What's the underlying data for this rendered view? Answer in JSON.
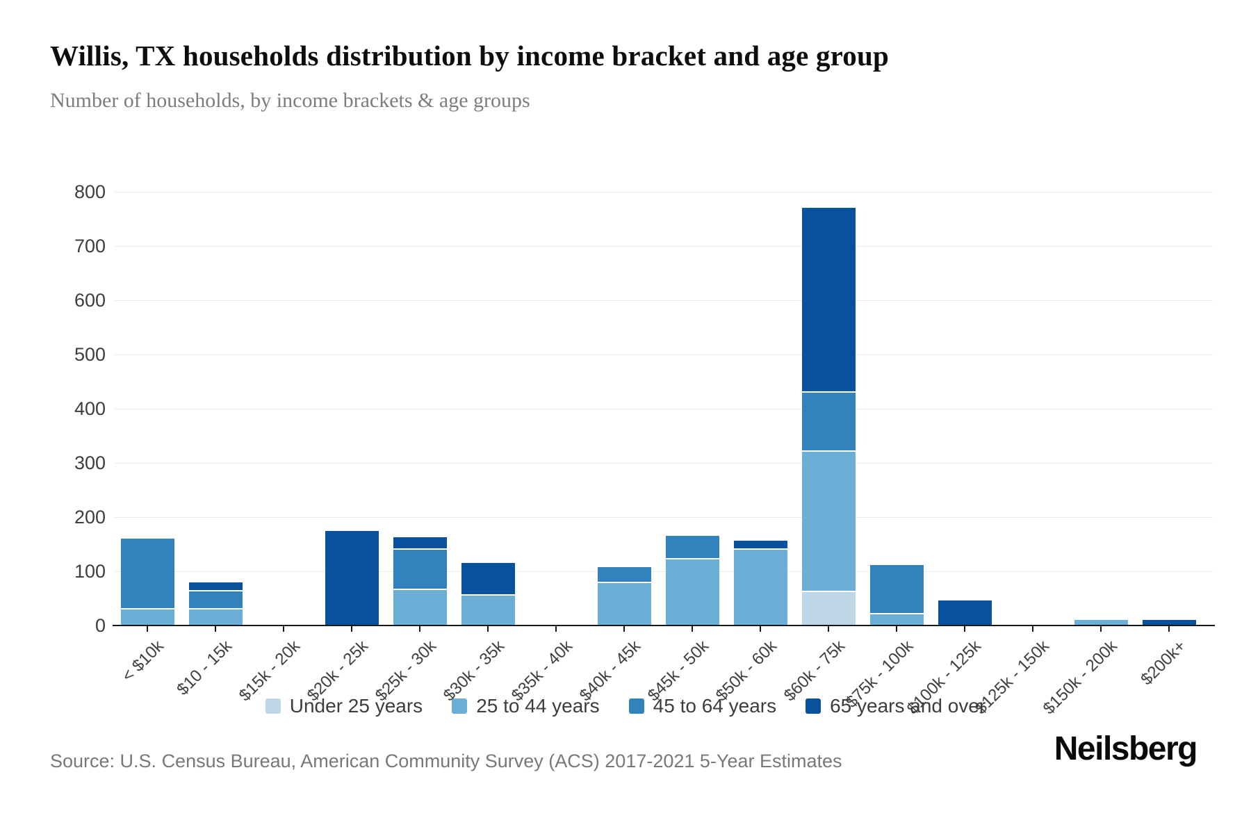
{
  "source": "Source: U.S. Census Bureau, American Community Survey (ACS) 2017-2021 5-Year Estimates",
  "logo": "Neilsberg",
  "chart_data": {
    "type": "bar",
    "stacked": true,
    "title": "Willis, TX households distribution by income bracket and age group",
    "subtitle": "Number of households, by income brackets & age groups",
    "xlabel": "",
    "ylabel": "",
    "ylim": [
      0,
      800
    ],
    "yticks": [
      0,
      100,
      200,
      300,
      400,
      500,
      600,
      700,
      800
    ],
    "grid": true,
    "legend_position": "bottom",
    "grid_color": "#ebebeb",
    "axis_color": "#181818",
    "categories": [
      "< $10k",
      "$10 - 15k",
      "$15k - 20k",
      "$20k - 25k",
      "$25k - 30k",
      "$30k - 35k",
      "$35k - 40k",
      "$40k - 45k",
      "$45k - 50k",
      "$50k - 60k",
      "$60k - 75k",
      "$75k - 100k",
      "$100k - 125k",
      "$125k - 150k",
      "$150k - 200k",
      "$200k+"
    ],
    "series": [
      {
        "name": "Under 25 years",
        "color": "#bdd7e7",
        "values": [
          0,
          0,
          0,
          0,
          0,
          0,
          0,
          0,
          0,
          0,
          62,
          0,
          0,
          0,
          0,
          0
        ]
      },
      {
        "name": "25 to 44 years",
        "color": "#6baed6",
        "values": [
          30,
          30,
          0,
          0,
          65,
          55,
          0,
          78,
          122,
          140,
          258,
          20,
          0,
          0,
          10,
          0
        ]
      },
      {
        "name": "45 to 64 years",
        "color": "#3182bd",
        "values": [
          130,
          33,
          0,
          0,
          75,
          0,
          0,
          30,
          43,
          0,
          110,
          92,
          0,
          0,
          0,
          0
        ]
      },
      {
        "name": "65 years and over",
        "color": "#08519c",
        "values": [
          0,
          17,
          0,
          175,
          23,
          60,
          0,
          0,
          0,
          16,
          340,
          0,
          46,
          0,
          0,
          10
        ]
      }
    ]
  }
}
